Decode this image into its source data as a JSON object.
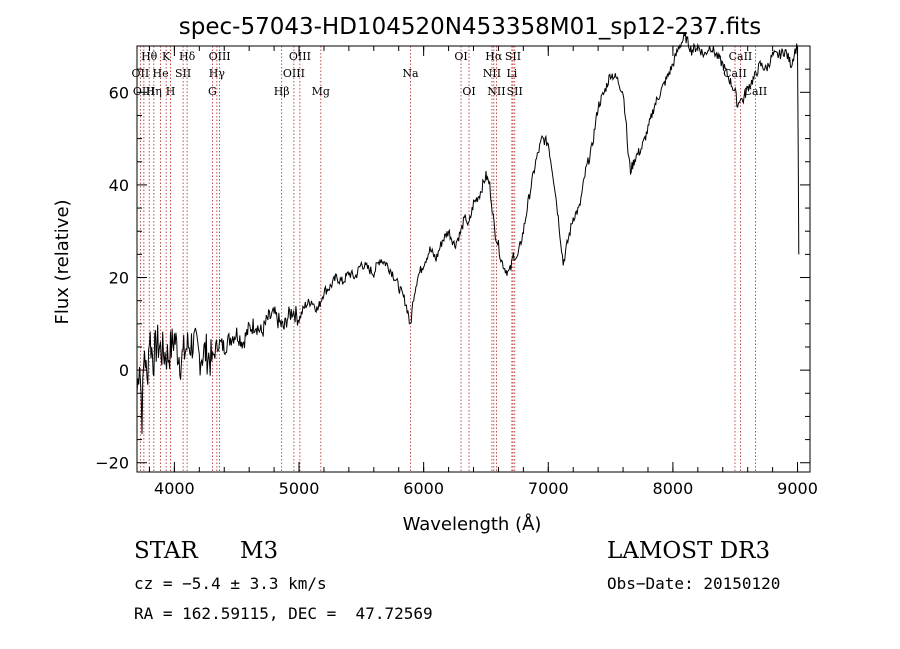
{
  "chart_data": {
    "type": "line",
    "title": "spec-57043-HD104520N453358M01_sp12-237.fits",
    "xlabel": "Wavelength (Å)",
    "ylabel": "Flux (relative)",
    "xlim": [
      3700,
      9100
    ],
    "ylim": [
      -22,
      70
    ],
    "xticks": [
      4000,
      5000,
      6000,
      7000,
      8000,
      9000
    ],
    "yticks": [
      -20,
      0,
      20,
      40,
      60
    ],
    "series": [
      {
        "name": "flux",
        "color": "#000000",
        "x": [
          3700,
          3720,
          3740,
          3760,
          3780,
          3800,
          3830,
          3860,
          3900,
          3950,
          4000,
          4050,
          4100,
          4150,
          4200,
          4250,
          4300,
          4350,
          4400,
          4450,
          4500,
          4550,
          4600,
          4650,
          4700,
          4750,
          4800,
          4850,
          4880,
          4900,
          4950,
          5000,
          5050,
          5100,
          5150,
          5200,
          5250,
          5300,
          5350,
          5400,
          5450,
          5500,
          5550,
          5600,
          5650,
          5700,
          5750,
          5800,
          5850,
          5880,
          5890,
          5900,
          5920,
          5950,
          6000,
          6050,
          6100,
          6150,
          6200,
          6250,
          6300,
          6320,
          6340,
          6360,
          6400,
          6450,
          6500,
          6530,
          6550,
          6570,
          6600,
          6620,
          6650,
          6680,
          6700,
          6720,
          6750,
          6800,
          6850,
          6900,
          6950,
          7000,
          7050,
          7080,
          7100,
          7120,
          7150,
          7200,
          7250,
          7300,
          7350,
          7400,
          7450,
          7500,
          7550,
          7600,
          7620,
          7640,
          7660,
          7700,
          7750,
          7800,
          7850,
          7900,
          7950,
          8000,
          8050,
          8100,
          8150,
          8200,
          8250,
          8300,
          8350,
          8400,
          8450,
          8500,
          8520,
          8540,
          8560,
          8600,
          8650,
          8700,
          8750,
          8800,
          8850,
          8900,
          8950,
          8980,
          9000,
          9010
        ],
        "values": [
          -5,
          3,
          -10,
          5,
          -3,
          8,
          2,
          6,
          4,
          3,
          7,
          2,
          5,
          6,
          3,
          4,
          2,
          6,
          5,
          7,
          8,
          6,
          9,
          10,
          8,
          11,
          12,
          10,
          9,
          11,
          13,
          11,
          14,
          15,
          13,
          17,
          18,
          20,
          19,
          21,
          20,
          23,
          22,
          21,
          24,
          23,
          21,
          18,
          15,
          12,
          9,
          11,
          16,
          20,
          23,
          26,
          24,
          28,
          30,
          27,
          30,
          32,
          33,
          31,
          36,
          38,
          42,
          40,
          35,
          30,
          27,
          24,
          22,
          21,
          22,
          25,
          24,
          30,
          38,
          45,
          50,
          49,
          40,
          33,
          28,
          23,
          27,
          33,
          35,
          43,
          48,
          57,
          60,
          64,
          63,
          60,
          55,
          47,
          43,
          46,
          48,
          52,
          57,
          60,
          63,
          66,
          70,
          72,
          69,
          70,
          68,
          70,
          68,
          66,
          63,
          60,
          57,
          59,
          58,
          61,
          63,
          66,
          65,
          68,
          68,
          69,
          66,
          69,
          70,
          25
        ]
      }
    ],
    "lines": [
      {
        "label": "Hθ",
        "x": 3798,
        "row": 0
      },
      {
        "label": "OII",
        "x": 3727,
        "row": 1
      },
      {
        "label": "OIII",
        "x": 3755,
        "row": 2
      },
      {
        "label": "K",
        "x": 3934,
        "row": 0
      },
      {
        "label": "He",
        "x": 3889,
        "row": 1
      },
      {
        "label": "Hη",
        "x": 3835,
        "row": 2
      },
      {
        "label": "H",
        "x": 3969,
        "row": 2
      },
      {
        "label": "SII",
        "x": 4070,
        "row": 1
      },
      {
        "label": "Hδ",
        "x": 4102,
        "row": 0
      },
      {
        "label": "OIII",
        "x": 4363,
        "row": 0
      },
      {
        "label": "Hγ",
        "x": 4341,
        "row": 1
      },
      {
        "label": "G",
        "x": 4305,
        "row": 2
      },
      {
        "label": "Hβ",
        "x": 4861,
        "row": 2
      },
      {
        "label": "OIII",
        "x": 5007,
        "row": 0
      },
      {
        "label": "OIII",
        "x": 4959,
        "row": 1
      },
      {
        "label": "Mg",
        "x": 5175,
        "row": 2
      },
      {
        "label": "Na",
        "x": 5894,
        "row": 1
      },
      {
        "label": "OI",
        "x": 6300,
        "row": 0
      },
      {
        "label": "OI",
        "x": 6364,
        "row": 2
      },
      {
        "label": "Hα",
        "x": 6563,
        "row": 0
      },
      {
        "label": "NII",
        "x": 6548,
        "row": 1
      },
      {
        "label": "NII",
        "x": 6584,
        "row": 2
      },
      {
        "label": "SII",
        "x": 6717,
        "row": 0
      },
      {
        "label": "Li",
        "x": 6708,
        "row": 1
      },
      {
        "label": "SII",
        "x": 6731,
        "row": 2
      },
      {
        "label": "CaII",
        "x": 8542,
        "row": 0
      },
      {
        "label": "CaII",
        "x": 8498,
        "row": 1
      },
      {
        "label": "CaII",
        "x": 8662,
        "row": 2
      }
    ]
  },
  "info": {
    "object_type": "STAR",
    "subclass": "M3",
    "survey": "LAMOST DR3",
    "cz": "cz = −5.4 ± 3.3 km/s",
    "obs_date": "Obs−Date: 20150120",
    "coords": "RA = 162.59115, DEC =  47.72569"
  }
}
